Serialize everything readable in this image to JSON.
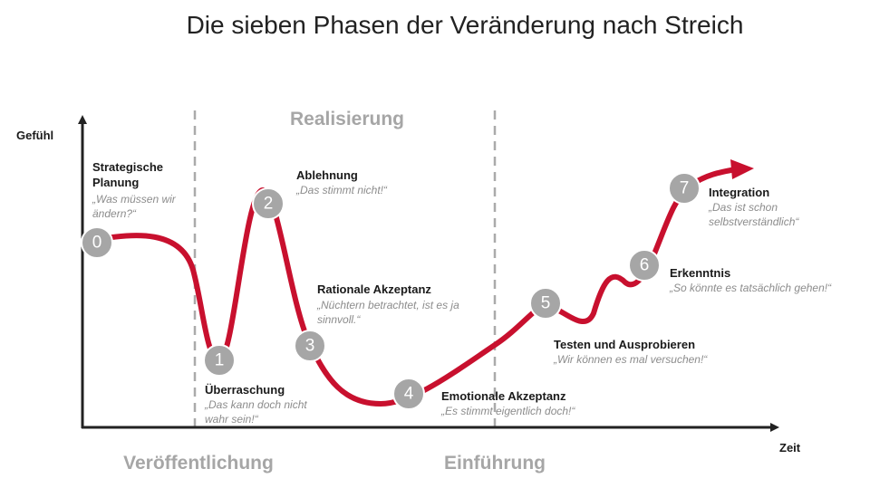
{
  "title": "Die sieben Phasen der Veränderung nach Streich",
  "y_axis_label": "Gefühl",
  "x_axis_label": "Zeit",
  "sections": [
    "Realisierung",
    "Veröffentlichung",
    "Einführung"
  ],
  "phases": [
    {
      "number": "0",
      "name": "Strategische Planung",
      "quote": "„Was müssen wir ändern?“"
    },
    {
      "number": "1",
      "name": "Überraschung",
      "quote": "„Das kann doch nicht wahr sein!“"
    },
    {
      "number": "2",
      "name": "Ablehnung",
      "quote": "„Das stimmt nicht!“"
    },
    {
      "number": "3",
      "name": "Rationale Akzeptanz",
      "quote": "„Nüchtern betrachtet, ist es ja sinnvoll.“"
    },
    {
      "number": "4",
      "name": "Emotionale Akzeptanz",
      "quote": "„Es stimmt eigentlich doch!“"
    },
    {
      "number": "5",
      "name": "Testen und Ausprobieren",
      "quote": "„Wir können es mal versuchen!“"
    },
    {
      "number": "6",
      "name": "Erkenntnis",
      "quote": "„So könnte es tatsächlich gehen!“"
    },
    {
      "number": "7",
      "name": "Integration",
      "quote": "„Das ist schon selbstverständlich“"
    }
  ]
}
